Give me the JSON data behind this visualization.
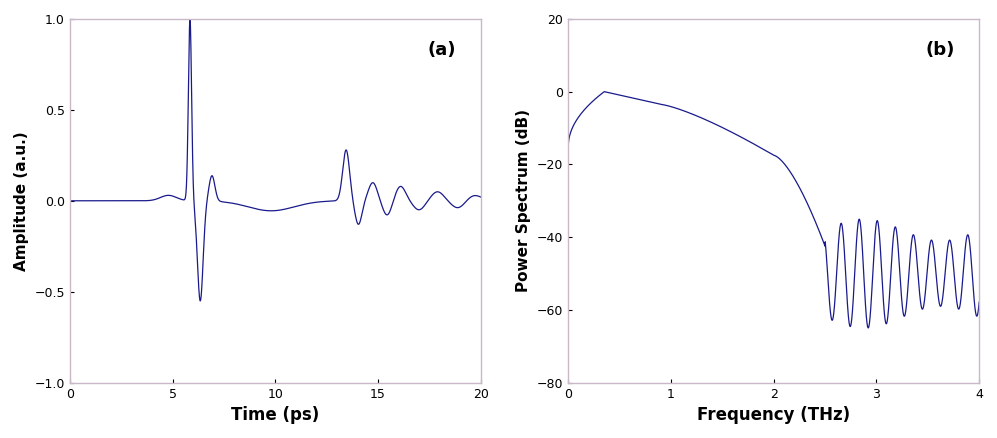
{
  "line_color": "#1a1a8c",
  "background_color": "#ffffff",
  "spine_color": "#c8b8c8",
  "panel_a": {
    "xlabel": "Time (ps)",
    "ylabel": "Amplitude (a.u.)",
    "label": "(a)",
    "xlim": [
      0,
      20
    ],
    "ylim": [
      -1,
      1
    ],
    "xticks": [
      0,
      5,
      10,
      15,
      20
    ],
    "yticks": [
      -1,
      -0.5,
      0,
      0.5,
      1
    ]
  },
  "panel_b": {
    "xlabel": "Frequency (THz)",
    "ylabel": "Power Spectrum (dB)",
    "label": "(b)",
    "xlim": [
      0,
      4
    ],
    "ylim": [
      -80,
      20
    ],
    "xticks": [
      0,
      1,
      2,
      3,
      4
    ],
    "yticks": [
      -80,
      -60,
      -40,
      -20,
      0,
      20
    ]
  }
}
